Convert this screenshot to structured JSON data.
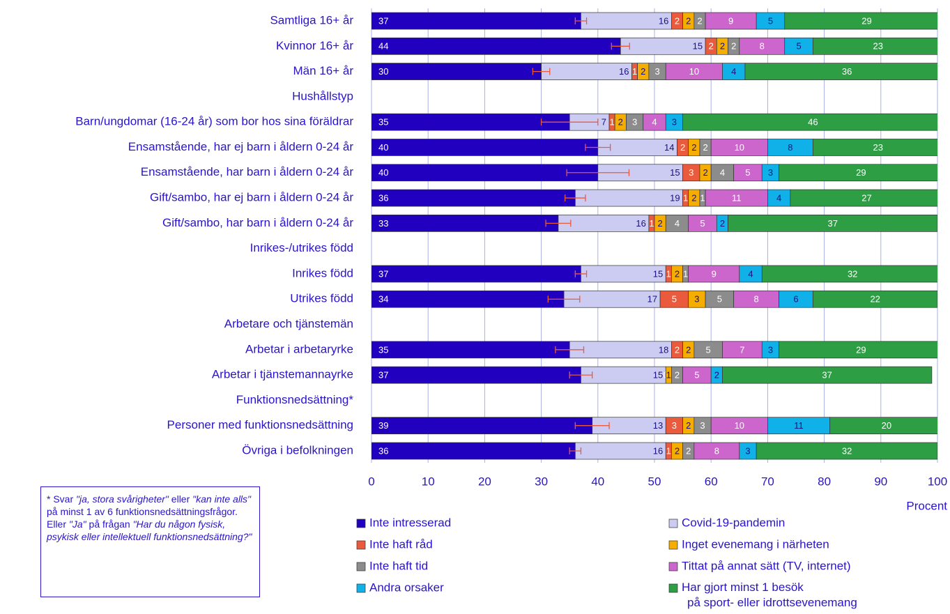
{
  "chart_data": {
    "type": "stacked-bar-horizontal",
    "categories": [
      "Samtliga 16+ år",
      "Kvinnor 16+ år",
      "Män 16+ år",
      "Hushållstyp",
      "Barn/ungdomar (16-24 år) som bor hos sina föräldrar",
      "Ensamstående, har ej barn i åldern 0-24 år",
      "Ensamstående, har barn i åldern 0-24 år",
      "Gift/sambo, har ej barn i åldern 0-24 år",
      "Gift/sambo, har barn i åldern 0-24 år",
      "Inrikes-/utrikes född",
      "Inrikes född",
      "Utrikes född",
      "Arbetare och tjänstemän",
      "Arbetar i arbetaryrke",
      "Arbetar i tjänstemannayrke",
      "Funktionsnedsättning*",
      "Personer med funktionsnedsättning",
      "Övriga i befolkningen"
    ],
    "series": [
      {
        "name": "Inte intresserad",
        "color": "#2200c0",
        "values": [
          37,
          44,
          30,
          null,
          35,
          40,
          40,
          36,
          33,
          null,
          37,
          34,
          null,
          35,
          37,
          null,
          39,
          36
        ],
        "errors": [
          1,
          1.6,
          1.5,
          null,
          5,
          2.2,
          5.5,
          1.8,
          2.2,
          null,
          1,
          2.8,
          null,
          2.5,
          2,
          null,
          3,
          1
        ]
      },
      {
        "name": "Covid-19-pandemin",
        "color": "#ccccf2",
        "values": [
          16,
          15,
          16,
          null,
          7,
          14,
          15,
          19,
          16,
          null,
          15,
          17,
          null,
          18,
          15,
          null,
          13,
          16
        ]
      },
      {
        "name": "Inte haft råd",
        "color": "#ea5a3c",
        "values": [
          2,
          2,
          1,
          null,
          1,
          2,
          3,
          1,
          1,
          null,
          1,
          5,
          null,
          2,
          0,
          null,
          3,
          1
        ]
      },
      {
        "name": "Inget evenemang i närheten",
        "color": "#f5ad00",
        "values": [
          2,
          2,
          2,
          null,
          2,
          2,
          2,
          2,
          2,
          null,
          2,
          3,
          null,
          2,
          1,
          null,
          2,
          2
        ]
      },
      {
        "name": "Inte haft tid",
        "color": "#8c8c8c",
        "values": [
          2,
          2,
          3,
          null,
          3,
          2,
          4,
          1,
          4,
          null,
          1,
          5,
          null,
          5,
          2,
          null,
          3,
          2
        ]
      },
      {
        "name": "Tittat på annat sätt (TV, internet)",
        "color": "#cc66cc",
        "values": [
          9,
          8,
          10,
          null,
          4,
          10,
          5,
          11,
          5,
          null,
          9,
          8,
          null,
          7,
          5,
          null,
          10,
          8
        ]
      },
      {
        "name": "Andra orsaker",
        "color": "#10b0e8",
        "values": [
          5,
          5,
          4,
          null,
          3,
          8,
          3,
          4,
          2,
          null,
          4,
          6,
          null,
          3,
          2,
          null,
          11,
          3
        ]
      },
      {
        "name": "Har gjort minst 1 besök\npå sport- eller idrottsevenemang",
        "color": "#2e9e44",
        "values": [
          29,
          23,
          36,
          null,
          46,
          23,
          29,
          27,
          37,
          null,
          32,
          22,
          null,
          29,
          37,
          null,
          20,
          32
        ]
      }
    ],
    "error_color": "#ea5a3c",
    "xlim": [
      0,
      100
    ],
    "xticks": [
      0,
      10,
      20,
      30,
      40,
      50,
      60,
      70,
      80,
      90,
      100
    ],
    "grid": true,
    "xlabel": "Procent"
  },
  "footnote": [
    {
      "text": "* Svar ",
      "italic": false
    },
    {
      "text": "\"ja, stora svårigheter\"",
      "italic": true
    },
    {
      "text": " eller ",
      "italic": false
    },
    {
      "text": "\"kan inte alls\"",
      "italic": true
    },
    {
      "text": " på minst 1 av 6 funktionsnedsättningsfrågor. Eller ",
      "italic": false
    },
    {
      "text": "\"Ja\"",
      "italic": true
    },
    {
      "text": " på frågan ",
      "italic": false
    },
    {
      "text": "\"Har du någon fysisk, psykisk eller intellektuell funktionsnedsättning?\"",
      "italic": true
    }
  ]
}
